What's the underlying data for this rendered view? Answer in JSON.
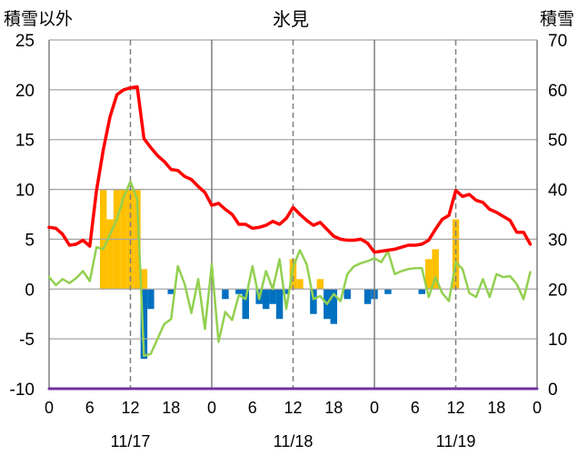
{
  "chart_data": {
    "type": "line",
    "title": "氷見",
    "ylabel": "積雪以外",
    "y2label": "積雪",
    "ylim": [
      -10,
      25
    ],
    "y2lim": [
      0,
      70
    ],
    "yticks": [
      25,
      20,
      15,
      10,
      5,
      0,
      -5,
      -10
    ],
    "y2ticks": [
      70,
      60,
      50,
      40,
      30,
      20,
      10,
      0
    ],
    "xticks": [
      "0",
      "6",
      "12",
      "18",
      "0",
      "6",
      "12",
      "18",
      "0",
      "6",
      "12",
      "18",
      "0"
    ],
    "date_labels": [
      "11/17",
      "11/18",
      "11/19"
    ],
    "grid": true,
    "series": [
      {
        "type": "bar",
        "axis": "y",
        "color": "#ffc000",
        "values": [
          null,
          null,
          null,
          null,
          null,
          null,
          null,
          null,
          10,
          7,
          10,
          10,
          10,
          10,
          2,
          null,
          null,
          null,
          null,
          null,
          null,
          null,
          null,
          null,
          null,
          null,
          null,
          null,
          null,
          null,
          null,
          null,
          null,
          null,
          null,
          null,
          3,
          1,
          null,
          null,
          1,
          null,
          null,
          null,
          null,
          null,
          null,
          null,
          null,
          null,
          null,
          null,
          null,
          null,
          null,
          null,
          3,
          4,
          null,
          null,
          7,
          null,
          null,
          null,
          null,
          null,
          null,
          null,
          null,
          null,
          null,
          null
        ]
      },
      {
        "type": "bar",
        "axis": "y",
        "color": "#0070c0",
        "values": [
          null,
          null,
          null,
          null,
          null,
          null,
          null,
          null,
          null,
          null,
          null,
          null,
          null,
          null,
          -7,
          -2,
          null,
          null,
          -0.5,
          null,
          null,
          null,
          null,
          null,
          null,
          null,
          -1,
          null,
          -0.5,
          -3,
          null,
          -1.5,
          -2,
          -1.5,
          -3,
          -0.5,
          null,
          null,
          null,
          -2.5,
          null,
          -3,
          -3.5,
          null,
          -1,
          null,
          null,
          -1.5,
          -1,
          null,
          -0.5,
          null,
          null,
          null,
          null,
          -0.5,
          null,
          null,
          null,
          null,
          null,
          null,
          null,
          null,
          null,
          null,
          null,
          null,
          null,
          null,
          null,
          null
        ]
      },
      {
        "type": "line",
        "axis": "y2",
        "color": "#7030a0",
        "values": [
          0,
          0,
          0,
          0,
          0,
          0,
          0,
          0,
          0,
          0,
          0,
          0,
          0,
          0,
          0,
          0,
          0,
          0,
          0,
          0,
          0,
          0,
          0,
          0,
          0,
          0,
          0,
          0,
          0,
          0,
          0,
          0,
          0,
          0,
          0,
          0,
          0,
          0,
          0,
          0,
          0,
          0,
          0,
          0,
          0,
          0,
          0,
          0,
          0,
          0,
          0,
          0,
          0,
          0,
          0,
          0,
          0,
          0,
          0,
          0,
          0,
          0,
          0,
          0,
          0,
          0,
          0,
          0,
          0,
          0,
          0,
          0,
          0
        ]
      },
      {
        "type": "line",
        "axis": "y",
        "color": "#92d050",
        "values": [
          1.2,
          0.4,
          1.0,
          0.6,
          1.1,
          1.8,
          0.8,
          4.2,
          4.0,
          5.5,
          7.0,
          9.2,
          10.8,
          9.0,
          -6.7,
          -6.5,
          -5.0,
          -3.5,
          -3.0,
          2.3,
          0.5,
          -2.4,
          1.0,
          -4.0,
          2.5,
          -5.3,
          -2.3,
          -3.1,
          -0.6,
          -1.0,
          2.3,
          -1.0,
          1.8,
          0.0,
          3.0,
          -2.0,
          2.2,
          3.9,
          2.5,
          -1.0,
          -0.7,
          -1.5,
          -0.5,
          -1.2,
          1.5,
          2.3,
          2.6,
          2.8,
          3.1,
          2.7,
          3.8,
          1.5,
          1.8,
          2.0,
          2.1,
          2.1,
          -0.8,
          1.2,
          -0.4,
          -1.2,
          2.7,
          2.0,
          -0.4,
          -0.8,
          1.0,
          -0.8,
          1.5,
          1.2,
          1.3,
          0.5,
          -1.0,
          1.7
        ]
      },
      {
        "type": "line",
        "axis": "y",
        "color": "#ff0000",
        "values": [
          6.2,
          6.1,
          5.5,
          4.4,
          4.5,
          4.9,
          4.3,
          9.9,
          14.0,
          17.3,
          19.5,
          20.0,
          20.2,
          20.3,
          15.1,
          14.2,
          13.4,
          12.8,
          12.0,
          11.9,
          11.3,
          11.0,
          10.3,
          9.7,
          8.4,
          8.6,
          8.0,
          7.5,
          6.5,
          6.5,
          6.1,
          6.2,
          6.4,
          6.8,
          6.5,
          7.1,
          8.2,
          7.5,
          6.9,
          6.4,
          6.7,
          6.0,
          5.3,
          5.0,
          4.9,
          4.9,
          5.0,
          4.6,
          3.7,
          3.8,
          3.9,
          4.0,
          4.2,
          4.4,
          4.4,
          4.5,
          4.9,
          6.0,
          7.0,
          7.4,
          9.9,
          9.3,
          9.5,
          8.9,
          8.7,
          8.0,
          7.7,
          7.3,
          6.9,
          5.7,
          5.7,
          4.5
        ]
      }
    ]
  }
}
